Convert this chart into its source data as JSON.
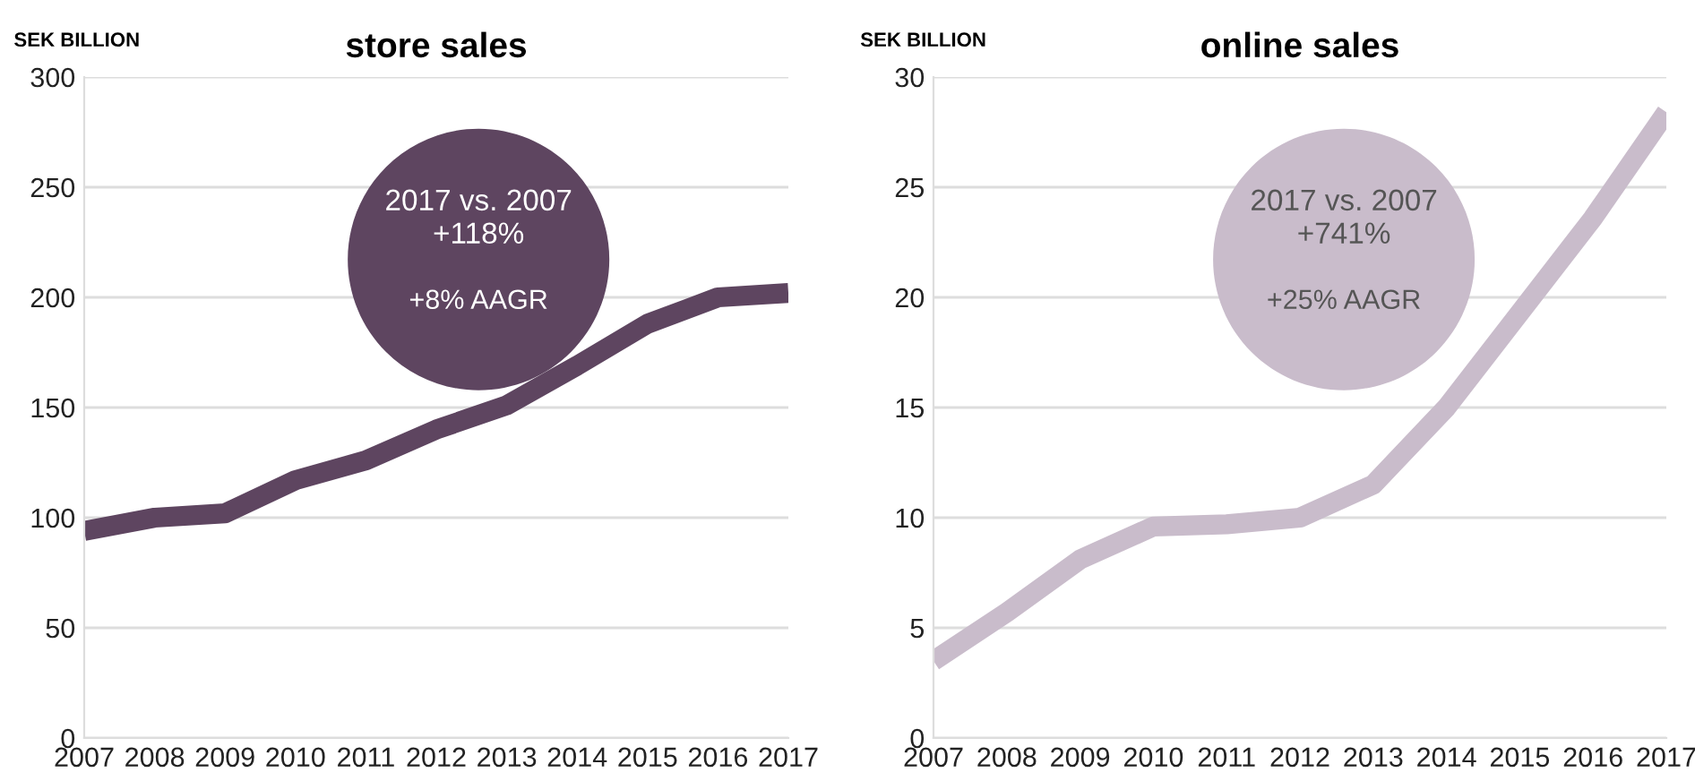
{
  "chart_data": [
    {
      "type": "line",
      "title": "store sales",
      "ylabel": "SEK BILLION",
      "categories": [
        "2007",
        "2008",
        "2009",
        "2010",
        "2011",
        "2012",
        "2013",
        "2014",
        "2015",
        "2016",
        "2017"
      ],
      "series": [
        {
          "color": "#5e4560",
          "values": [
            94,
            100,
            102,
            117,
            126,
            140,
            151,
            169,
            188,
            200,
            202
          ]
        }
      ],
      "ylim": [
        0,
        300
      ],
      "yticks": [
        0,
        50,
        100,
        150,
        200,
        250,
        300
      ],
      "grid": "y",
      "legend": false,
      "annotations": [
        "2017 vs. 2007",
        "+118%",
        "+8% AAGR"
      ]
    },
    {
      "type": "line",
      "title": "online sales",
      "ylabel": "SEK BILLION",
      "categories": [
        "2007",
        "2008",
        "2009",
        "2010",
        "2011",
        "2012",
        "2013",
        "2014",
        "2015",
        "2016",
        "2017"
      ],
      "series": [
        {
          "color": "#c9bccb",
          "values": [
            3.5,
            5.7,
            8.1,
            9.6,
            9.7,
            10.0,
            11.5,
            15.0,
            19.3,
            23.6,
            28.4
          ]
        }
      ],
      "ylim": [
        0,
        30
      ],
      "yticks": [
        0,
        5,
        10,
        15,
        20,
        25,
        30
      ],
      "grid": "y",
      "legend": false,
      "annotations": [
        "2017 vs. 2007",
        "+741%",
        "+25% AAGR"
      ]
    }
  ]
}
